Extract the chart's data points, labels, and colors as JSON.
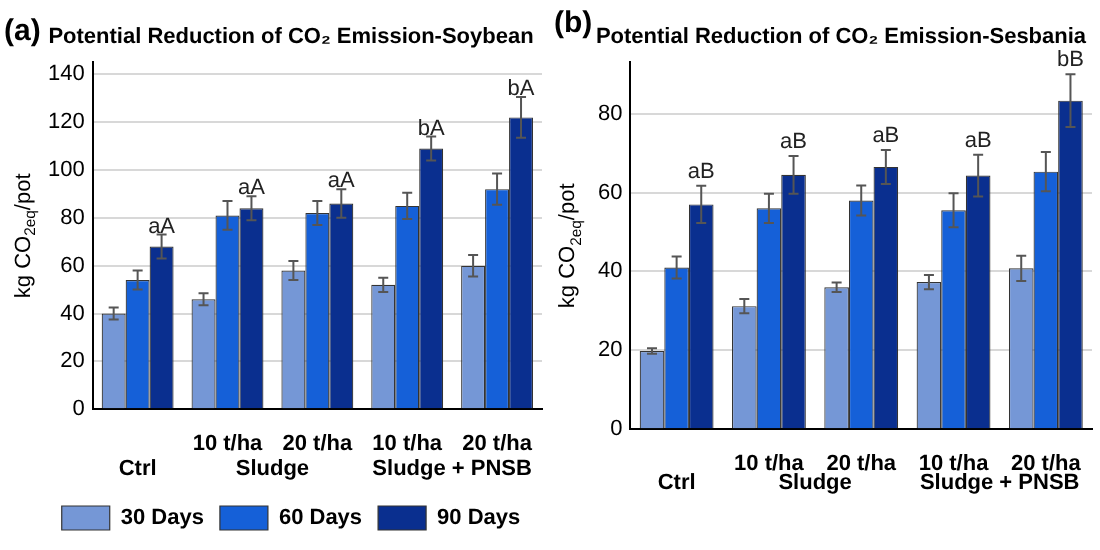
{
  "chart_data": [
    {
      "type": "bar",
      "title": "Potential Reduction of CO₂ Emission-Soybean",
      "ylabel": "kg CO$_{2eq}$/pot",
      "annotations": [
        "(a)",
        "Ctrl",
        "Sludge",
        "Sludge + PNSB"
      ],
      "categories": [
        null,
        "10 t/ha",
        "20 t/ha",
        "10 t/ha",
        "20 t/ha"
      ],
      "series": [
        {
          "name": "30 Days",
          "color": "#7597d6",
          "values": [
            40,
            46,
            58,
            52,
            60
          ],
          "errors": [
            2.5,
            2.5,
            4,
            3,
            4.5
          ]
        },
        {
          "name": "60 Days",
          "color": "#1560d8",
          "values": [
            54,
            81,
            82,
            85,
            92
          ],
          "errors": [
            4,
            6,
            5,
            5.5,
            6.5
          ]
        },
        {
          "name": "90 Days",
          "color": "#0a2f8f",
          "values": [
            68,
            84,
            86,
            109,
            122
          ],
          "errors": [
            5,
            5,
            6,
            5,
            8.5
          ],
          "value_labels": [
            "aA",
            "aA",
            "aA",
            "bA",
            "bA"
          ]
        }
      ],
      "ylim": [
        0,
        145
      ],
      "yticks": [
        0,
        20,
        40,
        60,
        80,
        100,
        120,
        140
      ],
      "grid": "y",
      "legend": "bottom"
    },
    {
      "type": "bar",
      "title": "Potential Reduction of CO₂ Emission-Sesbania",
      "ylabel": "kg CO$_{2eq}$/pot",
      "annotations": [
        "(b)",
        "Ctrl",
        "Sludge",
        "Sludge + PNSB"
      ],
      "categories": [
        null,
        "10 t/ha",
        "20 t/ha",
        "10 t/ha",
        "20 t/ha"
      ],
      "series": [
        {
          "color": "#7597d6",
          "values": [
            19.8,
            31.2,
            36,
            37.3,
            40.8
          ],
          "errors": [
            0.7,
            1.8,
            1.2,
            1.8,
            3.2
          ]
        },
        {
          "color": "#1560d8",
          "values": [
            41,
            56,
            58,
            55.5,
            65.3
          ],
          "errors": [
            2.8,
            3.7,
            3.8,
            4.3,
            5
          ]
        },
        {
          "color": "#0a2f8f",
          "values": [
            57,
            64.5,
            66.5,
            64.3,
            83.3
          ],
          "errors": [
            4.7,
            4.8,
            4.3,
            5.3,
            6.7
          ],
          "value_labels": [
            "aB",
            "aB",
            "aB",
            "aB",
            "bB"
          ]
        }
      ],
      "ylim": [
        0,
        93
      ],
      "yticks": [
        0,
        20,
        40,
        60,
        80
      ],
      "grid": "y",
      "legend": false
    }
  ]
}
